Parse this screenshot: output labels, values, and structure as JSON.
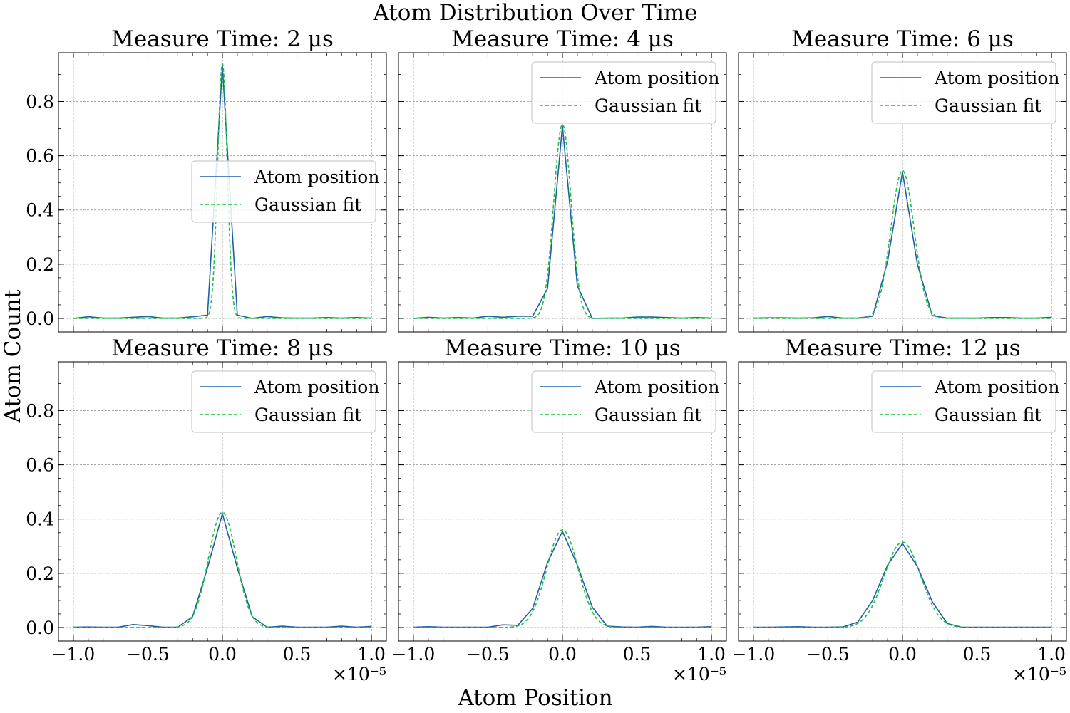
{
  "figure": {
    "title": "Atom Distribution Over Time",
    "xlabel": "Atom Position",
    "ylabel": "Atom Count"
  },
  "colors": {
    "atom_line": "#1f5fa8",
    "fit_line": "#1fbf3f",
    "grid": "#8c8c8c",
    "legend_edge": "#cccccc"
  },
  "x_offset_label": "×10⁻⁵",
  "legend_labels": [
    "Atom position",
    "Gaussian fit"
  ],
  "chart_data": [
    {
      "type": "line",
      "title": "Measure Time: 2 μs",
      "legend_location": "center-right",
      "xlim": [
        -1.1,
        1.1
      ],
      "ylim": [
        -0.05,
        0.98
      ],
      "xticks": [
        "−1.0",
        "−0.5",
        "0.0",
        "0.5",
        "1.0"
      ],
      "yticks": [
        "0.0",
        "0.2",
        "0.4",
        "0.6",
        "0.8"
      ],
      "series": [
        {
          "name": "Atom position",
          "x": [
            -1.0,
            -0.9,
            -0.8,
            -0.7,
            -0.6,
            -0.5,
            -0.4,
            -0.3,
            -0.2,
            -0.1,
            0.0,
            0.1,
            0.2,
            0.3,
            0.4,
            0.5,
            0.6,
            0.7,
            0.8,
            0.9,
            1.0
          ],
          "values": [
            0.0,
            0.006,
            0.001,
            0.001,
            0.004,
            0.007,
            0.001,
            0.001,
            0.006,
            0.012,
            0.93,
            0.012,
            0.0,
            0.007,
            0.002,
            0.001,
            0.001,
            0.003,
            0.001,
            0.003,
            0.001
          ]
        },
        {
          "name": "Gaussian fit",
          "gaussian": {
            "amp": 0.94,
            "sigma": 0.032
          }
        }
      ]
    },
    {
      "type": "line",
      "title": "Measure Time: 4 μs",
      "legend_location": "top-right",
      "xlim": [
        -1.1,
        1.1
      ],
      "ylim": [
        -0.05,
        0.98
      ],
      "xticks": [
        "−1.0",
        "−0.5",
        "0.0",
        "0.5",
        "1.0"
      ],
      "yticks": [],
      "series": [
        {
          "name": "Atom position",
          "x": [
            -1.0,
            -0.9,
            -0.8,
            -0.7,
            -0.6,
            -0.5,
            -0.4,
            -0.3,
            -0.2,
            -0.1,
            0.0,
            0.1,
            0.2,
            0.3,
            0.4,
            0.5,
            0.6,
            0.7,
            0.8,
            0.9,
            1.0
          ],
          "values": [
            0.0,
            0.004,
            0.001,
            0.003,
            0.001,
            0.008,
            0.004,
            0.008,
            0.008,
            0.11,
            0.71,
            0.12,
            0.0,
            0.001,
            0.001,
            0.005,
            0.005,
            0.003,
            0.001,
            0.003,
            0.001
          ]
        },
        {
          "name": "Gaussian fit",
          "gaussian": {
            "amp": 0.715,
            "sigma": 0.058
          }
        }
      ]
    },
    {
      "type": "line",
      "title": "Measure Time: 6 μs",
      "legend_location": "top-right",
      "xlim": [
        -1.1,
        1.1
      ],
      "ylim": [
        -0.05,
        0.98
      ],
      "xticks": [
        "−1.0",
        "−0.5",
        "0.0",
        "0.5",
        "1.0"
      ],
      "yticks": [],
      "series": [
        {
          "name": "Atom position",
          "x": [
            -1.0,
            -0.9,
            -0.8,
            -0.7,
            -0.6,
            -0.5,
            -0.4,
            -0.3,
            -0.2,
            -0.1,
            0.0,
            0.1,
            0.2,
            0.3,
            0.4,
            0.5,
            0.6,
            0.7,
            0.8,
            0.9,
            1.0
          ],
          "values": [
            0.001,
            0.002,
            0.002,
            0.001,
            0.002,
            0.007,
            0.001,
            0.001,
            0.008,
            0.21,
            0.54,
            0.2,
            0.01,
            0.001,
            0.001,
            0.001,
            0.003,
            0.003,
            0.001,
            0.001,
            0.004
          ]
        },
        {
          "name": "Gaussian fit",
          "gaussian": {
            "amp": 0.545,
            "sigma": 0.078
          }
        }
      ]
    },
    {
      "type": "line",
      "title": "Measure Time: 8 μs",
      "legend_location": "top-right",
      "xlim": [
        -1.1,
        1.1
      ],
      "ylim": [
        -0.05,
        0.98
      ],
      "xticks": [
        "−1.0",
        "−0.5",
        "0.0",
        "0.5",
        "1.0"
      ],
      "yticks": [
        "0.0",
        "0.2",
        "0.4",
        "0.6",
        "0.8"
      ],
      "series": [
        {
          "name": "Atom position",
          "x": [
            -1.0,
            -0.9,
            -0.8,
            -0.7,
            -0.6,
            -0.5,
            -0.4,
            -0.3,
            -0.2,
            -0.1,
            0.0,
            0.1,
            0.2,
            0.3,
            0.4,
            0.5,
            0.6,
            0.7,
            0.8,
            0.9,
            1.0
          ],
          "values": [
            0.001,
            0.002,
            0.001,
            0.001,
            0.011,
            0.007,
            0.001,
            0.001,
            0.04,
            0.22,
            0.42,
            0.22,
            0.04,
            0.001,
            0.005,
            0.001,
            0.001,
            0.001,
            0.005,
            0.001,
            0.004
          ]
        },
        {
          "name": "Gaussian fit",
          "gaussian": {
            "amp": 0.425,
            "sigma": 0.093
          }
        }
      ]
    },
    {
      "type": "line",
      "title": "Measure Time: 10 μs",
      "legend_location": "top-right",
      "xlim": [
        -1.1,
        1.1
      ],
      "ylim": [
        -0.05,
        0.98
      ],
      "xticks": [
        "−1.0",
        "−0.5",
        "0.0",
        "0.5",
        "1.0"
      ],
      "yticks": [],
      "series": [
        {
          "name": "Atom position",
          "x": [
            -1.0,
            -0.9,
            -0.8,
            -0.7,
            -0.6,
            -0.5,
            -0.4,
            -0.3,
            -0.2,
            -0.1,
            0.0,
            0.1,
            0.2,
            0.3,
            0.4,
            0.5,
            0.6,
            0.7,
            0.8,
            0.9,
            1.0
          ],
          "values": [
            0.001,
            0.003,
            0.001,
            0.001,
            0.001,
            0.001,
            0.01,
            0.008,
            0.07,
            0.24,
            0.355,
            0.23,
            0.075,
            0.005,
            0.002,
            0.001,
            0.004,
            0.001,
            0.001,
            0.001,
            0.003
          ]
        },
        {
          "name": "Gaussian fit",
          "gaussian": {
            "amp": 0.36,
            "sigma": 0.105
          }
        }
      ]
    },
    {
      "type": "line",
      "title": "Measure Time: 12 μs",
      "legend_location": "top-right",
      "xlim": [
        -1.1,
        1.1
      ],
      "ylim": [
        -0.05,
        0.98
      ],
      "xticks": [
        "−1.0",
        "−0.5",
        "0.0",
        "0.5",
        "1.0"
      ],
      "yticks": [],
      "series": [
        {
          "name": "Atom position",
          "x": [
            -1.0,
            -0.9,
            -0.8,
            -0.7,
            -0.6,
            -0.5,
            -0.4,
            -0.3,
            -0.2,
            -0.1,
            0.0,
            0.1,
            0.2,
            0.3,
            0.4,
            0.5,
            0.6,
            0.7,
            0.8,
            0.9,
            1.0
          ],
          "values": [
            0.001,
            0.001,
            0.002,
            0.003,
            0.001,
            0.001,
            0.002,
            0.02,
            0.1,
            0.23,
            0.31,
            0.225,
            0.095,
            0.015,
            0.001,
            0.001,
            0.001,
            0.001,
            0.001,
            0.001,
            0.001
          ]
        },
        {
          "name": "Gaussian fit",
          "gaussian": {
            "amp": 0.315,
            "sigma": 0.122
          }
        }
      ]
    }
  ]
}
